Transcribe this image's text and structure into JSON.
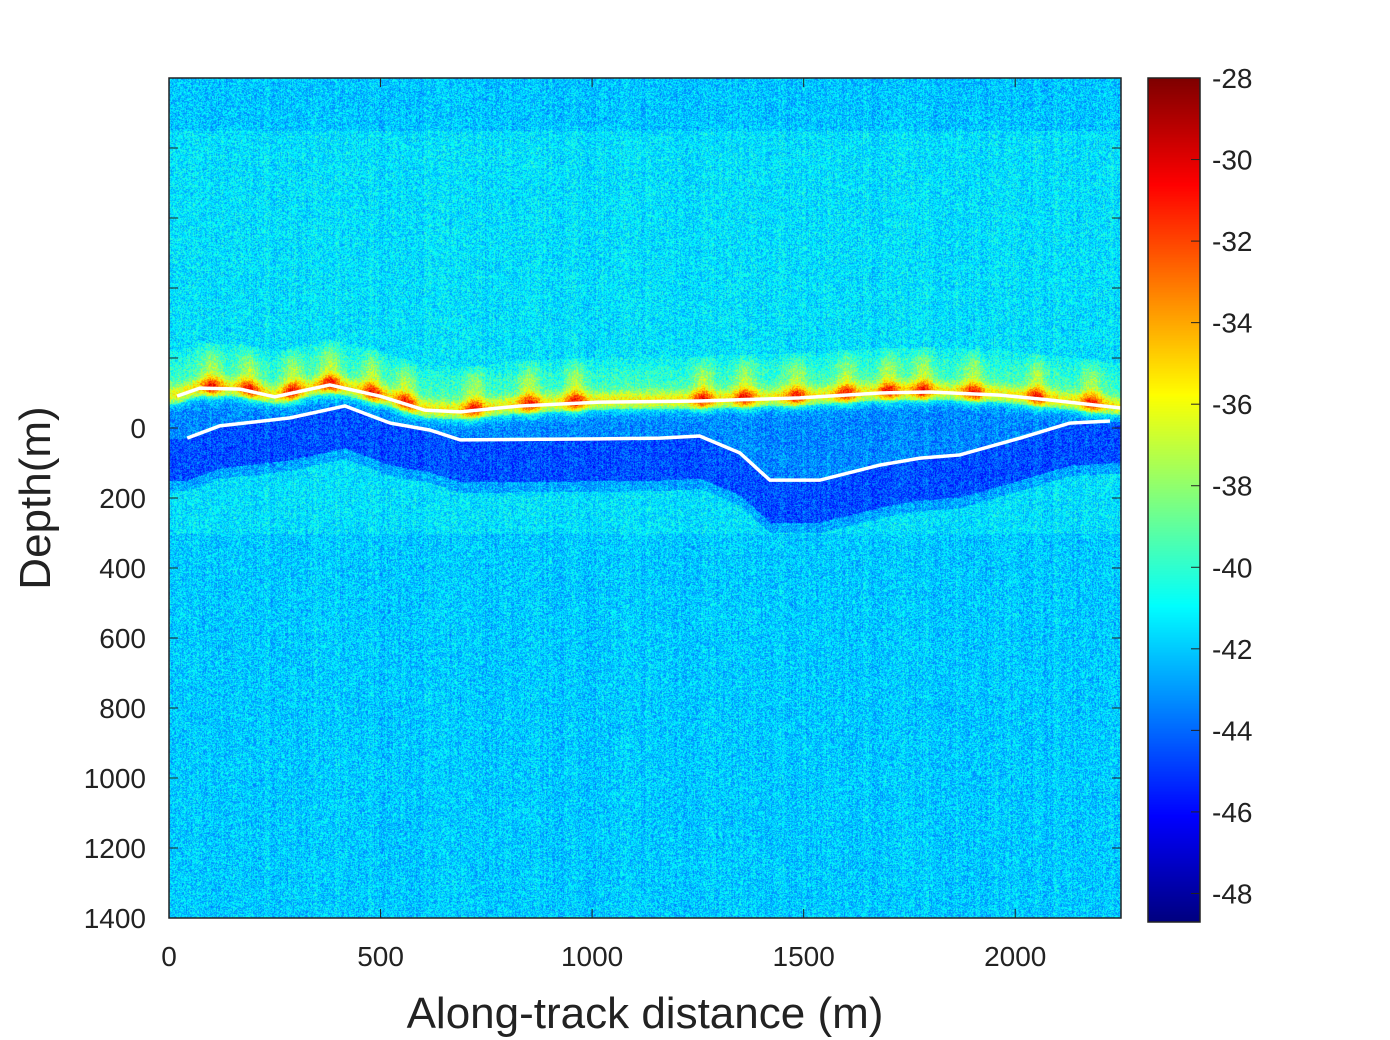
{
  "chart_data": {
    "type": "heatmap",
    "title": "",
    "xlabel": "Along-track distance (m)",
    "ylabel": "Depth(m)",
    "xlim": [
      0,
      2250
    ],
    "ylim": [
      -1000,
      1400
    ],
    "xticks": [
      0,
      500,
      1000,
      1500,
      2000
    ],
    "yticks": [
      -800,
      -600,
      -400,
      -200,
      0,
      200,
      400,
      600,
      800,
      1000,
      1200,
      1400
    ],
    "ytick_labels": [
      "",
      "",
      "",
      "",
      "0",
      "200",
      "400",
      "600",
      "800",
      "1000",
      "1200",
      "1400"
    ],
    "colormap": "jet",
    "clim": [
      -48.7,
      -28
    ],
    "colorbar_ticks": [
      -28,
      -30,
      -32,
      -34,
      -36,
      -38,
      -40,
      -42,
      -44,
      -46,
      -48
    ],
    "series": [
      {
        "name": "upper boundary",
        "color": "#ffffff",
        "x": [
          19,
          73,
          168,
          250,
          380,
          499,
          605,
          688,
          829,
          1018,
          1254,
          1491,
          1680,
          1798,
          1964,
          2082,
          2250
        ],
        "y": [
          -91,
          -114,
          -111,
          -89,
          -123,
          -91,
          -51,
          -46,
          -63,
          -74,
          -77,
          -86,
          -100,
          -103,
          -94,
          -80,
          -57
        ]
      },
      {
        "name": "lower boundary",
        "color": "#ffffff",
        "x": [
          43,
          120,
          286,
          416,
          523,
          617,
          688,
          1018,
          1160,
          1254,
          1349,
          1420,
          1538,
          1680,
          1775,
          1869,
          2011,
          2129,
          2224
        ],
        "y": [
          29,
          -6,
          -29,
          -63,
          -14,
          6,
          34,
          31,
          29,
          23,
          71,
          149,
          149,
          106,
          86,
          77,
          29,
          -14,
          -20
        ]
      }
    ]
  }
}
